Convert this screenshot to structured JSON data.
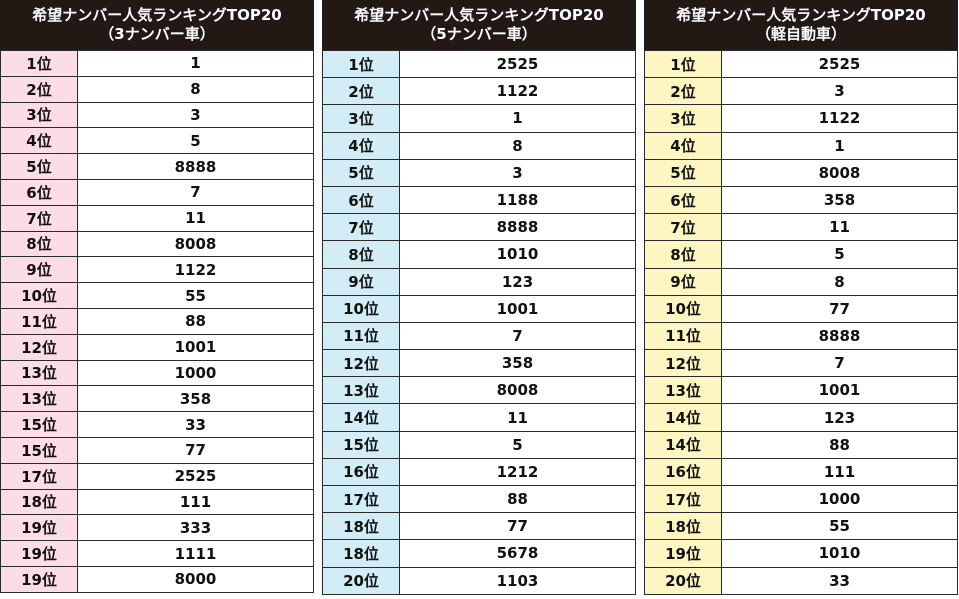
{
  "colors": {
    "header_bg": "#221814",
    "panel1_rank_bg": "#fcdde5",
    "panel2_rank_bg": "#d3edf6",
    "panel3_rank_bg": "#fdf6c3"
  },
  "panels": [
    {
      "title_line1": "希望ナンバー人気ランキングTOP20",
      "title_line2": "（3ナンバー車）",
      "rows": [
        {
          "rank": "1位",
          "number": "1"
        },
        {
          "rank": "2位",
          "number": "8"
        },
        {
          "rank": "3位",
          "number": "3"
        },
        {
          "rank": "4位",
          "number": "5"
        },
        {
          "rank": "5位",
          "number": "8888"
        },
        {
          "rank": "6位",
          "number": "7"
        },
        {
          "rank": "7位",
          "number": "11"
        },
        {
          "rank": "8位",
          "number": "8008"
        },
        {
          "rank": "9位",
          "number": "1122"
        },
        {
          "rank": "10位",
          "number": "55"
        },
        {
          "rank": "11位",
          "number": "88"
        },
        {
          "rank": "12位",
          "number": "1001"
        },
        {
          "rank": "13位",
          "number": "1000"
        },
        {
          "rank": "13位",
          "number": "358"
        },
        {
          "rank": "15位",
          "number": "33"
        },
        {
          "rank": "15位",
          "number": "77"
        },
        {
          "rank": "17位",
          "number": "2525"
        },
        {
          "rank": "18位",
          "number": "111"
        },
        {
          "rank": "19位",
          "number": "333"
        },
        {
          "rank": "19位",
          "number": "1111"
        },
        {
          "rank": "19位",
          "number": "8000"
        }
      ]
    },
    {
      "title_line1": "希望ナンバー人気ランキングTOP20",
      "title_line2": "（5ナンバー車）",
      "rows": [
        {
          "rank": "1位",
          "number": "2525"
        },
        {
          "rank": "2位",
          "number": "1122"
        },
        {
          "rank": "3位",
          "number": "1"
        },
        {
          "rank": "4位",
          "number": "8"
        },
        {
          "rank": "5位",
          "number": "3"
        },
        {
          "rank": "6位",
          "number": "1188"
        },
        {
          "rank": "7位",
          "number": "8888"
        },
        {
          "rank": "8位",
          "number": "1010"
        },
        {
          "rank": "9位",
          "number": "123"
        },
        {
          "rank": "10位",
          "number": "1001"
        },
        {
          "rank": "11位",
          "number": "7"
        },
        {
          "rank": "12位",
          "number": "358"
        },
        {
          "rank": "13位",
          "number": "8008"
        },
        {
          "rank": "14位",
          "number": "11"
        },
        {
          "rank": "15位",
          "number": "5"
        },
        {
          "rank": "16位",
          "number": "1212"
        },
        {
          "rank": "17位",
          "number": "88"
        },
        {
          "rank": "18位",
          "number": "77"
        },
        {
          "rank": "18位",
          "number": "5678"
        },
        {
          "rank": "20位",
          "number": "1103"
        }
      ]
    },
    {
      "title_line1": "希望ナンバー人気ランキングTOP20",
      "title_line2": "（軽自動車）",
      "rows": [
        {
          "rank": "1位",
          "number": "2525"
        },
        {
          "rank": "2位",
          "number": "3"
        },
        {
          "rank": "3位",
          "number": "1122"
        },
        {
          "rank": "4位",
          "number": "1"
        },
        {
          "rank": "5位",
          "number": "8008"
        },
        {
          "rank": "6位",
          "number": "358"
        },
        {
          "rank": "7位",
          "number": "11"
        },
        {
          "rank": "8位",
          "number": "5"
        },
        {
          "rank": "9位",
          "number": "8"
        },
        {
          "rank": "10位",
          "number": "77"
        },
        {
          "rank": "11位",
          "number": "8888"
        },
        {
          "rank": "12位",
          "number": "7"
        },
        {
          "rank": "13位",
          "number": "1001"
        },
        {
          "rank": "14位",
          "number": "123"
        },
        {
          "rank": "14位",
          "number": "88"
        },
        {
          "rank": "16位",
          "number": "111"
        },
        {
          "rank": "17位",
          "number": "1000"
        },
        {
          "rank": "18位",
          "number": "55"
        },
        {
          "rank": "19位",
          "number": "1010"
        },
        {
          "rank": "20位",
          "number": "33"
        }
      ]
    }
  ]
}
